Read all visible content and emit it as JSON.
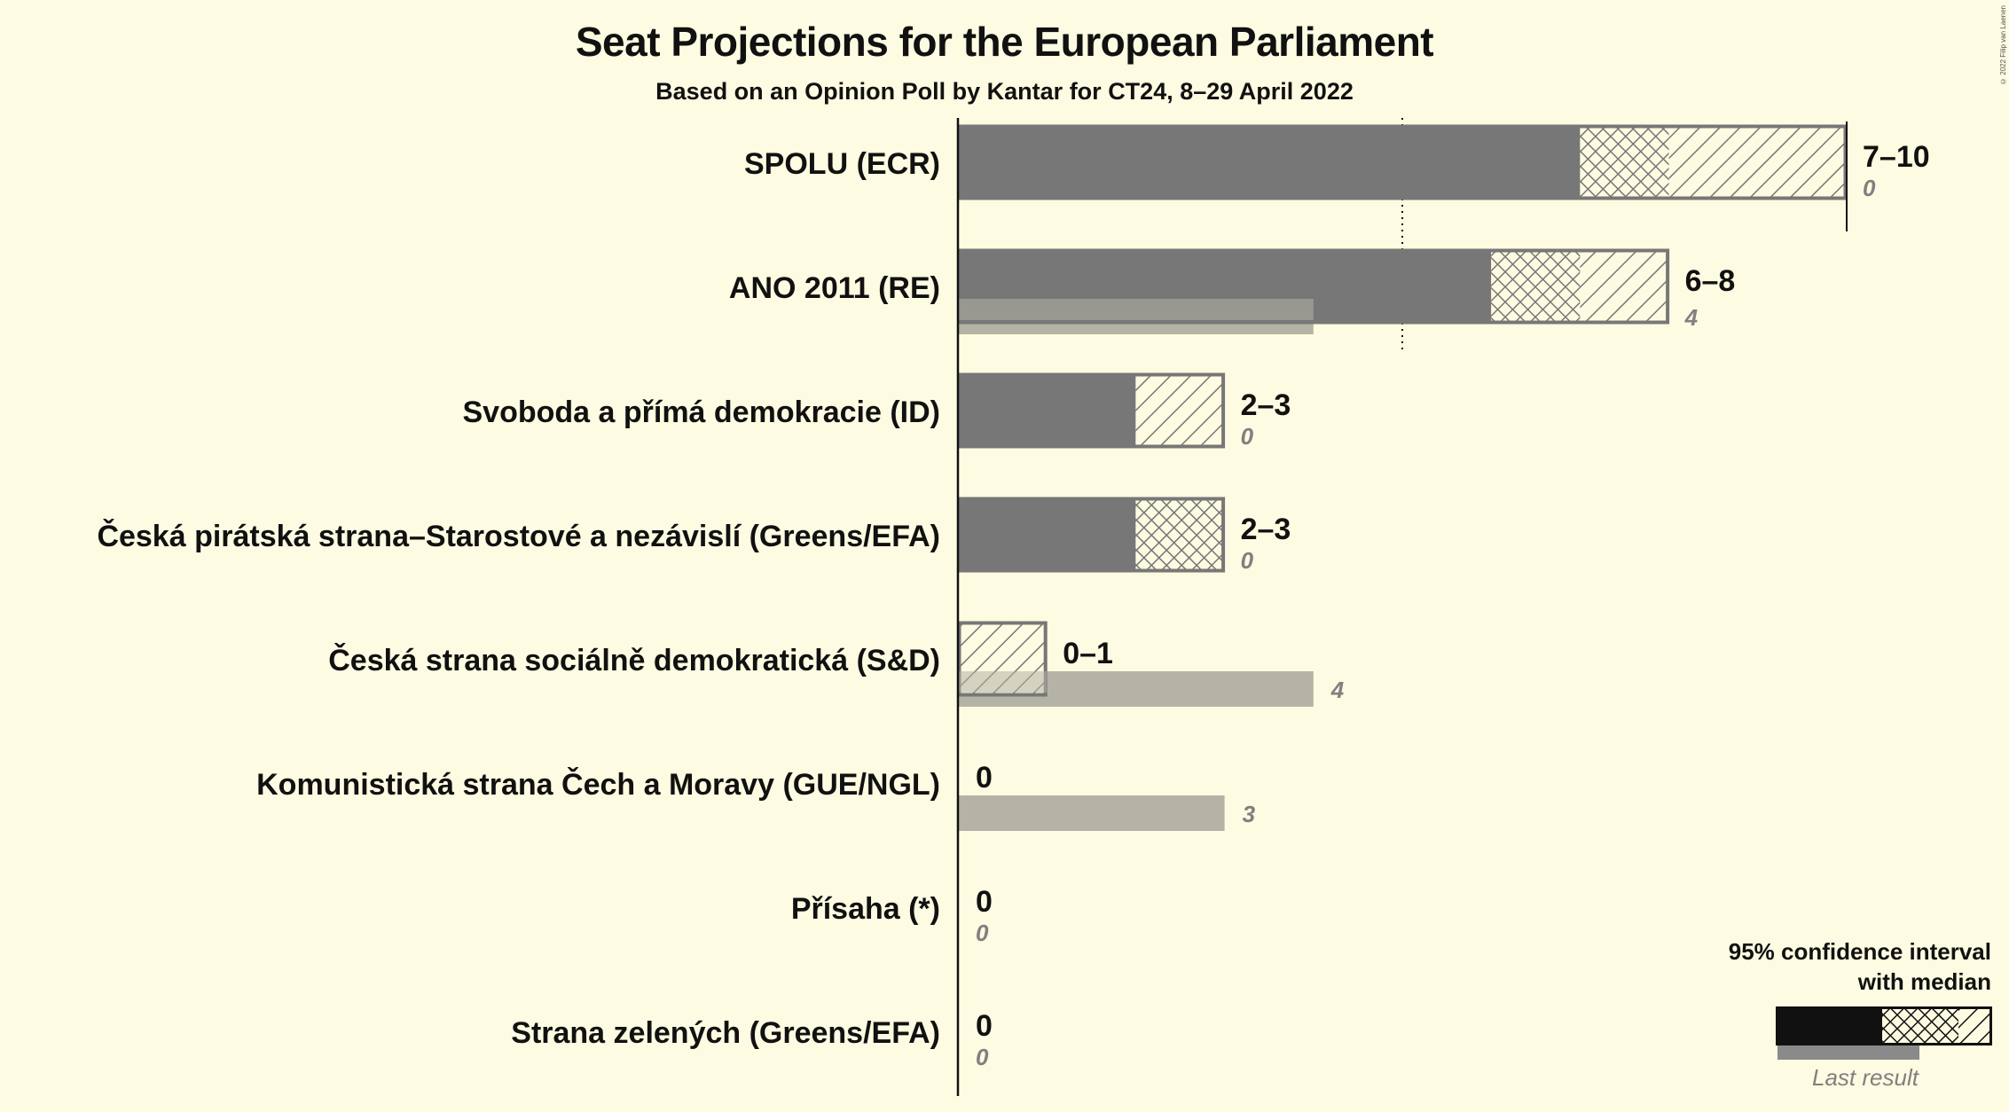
{
  "title": "Seat Projections for the European Parliament",
  "subtitle": "Based on an Opinion Poll by Kantar for CT24, 8–29 April 2022",
  "copyright": "© 2022 Filip van Laenen",
  "legend": {
    "line1": "95% confidence interval",
    "line2": "with median",
    "last_result": "Last result"
  },
  "colors": {
    "background": "#fdfbe1",
    "interval_fill": "#777777",
    "interval_outline": "#777777",
    "last_result": "#b5b3a5",
    "legend_fill": "#111111"
  },
  "chart_data": {
    "type": "bar",
    "orientation": "horizontal",
    "title": "Seat Projections for the European Parliament",
    "subtitle": "Based on an Opinion Poll by Kantar for CT24, 8–29 April 2022",
    "majority_line": 5,
    "xlim": [
      0,
      10
    ],
    "parties": [
      {
        "name": "SPOLU (ECR)",
        "low": 7,
        "q_low": 7,
        "median": 8,
        "high": 10,
        "range_label": "7–10",
        "last": 0,
        "last_label": "0"
      },
      {
        "name": "ANO 2011 (RE)",
        "low": 6,
        "q_low": 6,
        "median": 7,
        "high": 8,
        "range_label": "6–8",
        "last": 4,
        "last_label": "4"
      },
      {
        "name": "Svoboda a přímá demokracie (ID)",
        "low": 2,
        "q_low": 2,
        "median": 2,
        "high": 3,
        "range_label": "2–3",
        "last": 0,
        "last_label": "0"
      },
      {
        "name": "Česká pirátská strana–Starostové a nezávislí (Greens/EFA)",
        "low": 2,
        "q_low": 2,
        "median": 3,
        "high": 3,
        "range_label": "2–3",
        "last": 0,
        "last_label": "0"
      },
      {
        "name": "Česká strana sociálně demokratická (S&D)",
        "low": 0,
        "q_low": 0,
        "median": 0,
        "high": 1,
        "range_label": "0–1",
        "last": 4,
        "last_label": "4"
      },
      {
        "name": "Komunistická strana Čech a Moravy (GUE/NGL)",
        "low": 0,
        "q_low": 0,
        "median": 0,
        "high": 0,
        "range_label": "0",
        "last": 3,
        "last_label": "3"
      },
      {
        "name": "Přísaha (*)",
        "low": 0,
        "q_low": 0,
        "median": 0,
        "high": 0,
        "range_label": "0",
        "last": 0,
        "last_label": "0"
      },
      {
        "name": "Strana zelených (Greens/EFA)",
        "low": 0,
        "q_low": 0,
        "median": 0,
        "high": 0,
        "range_label": "0",
        "last": 0,
        "last_label": "0"
      }
    ]
  }
}
